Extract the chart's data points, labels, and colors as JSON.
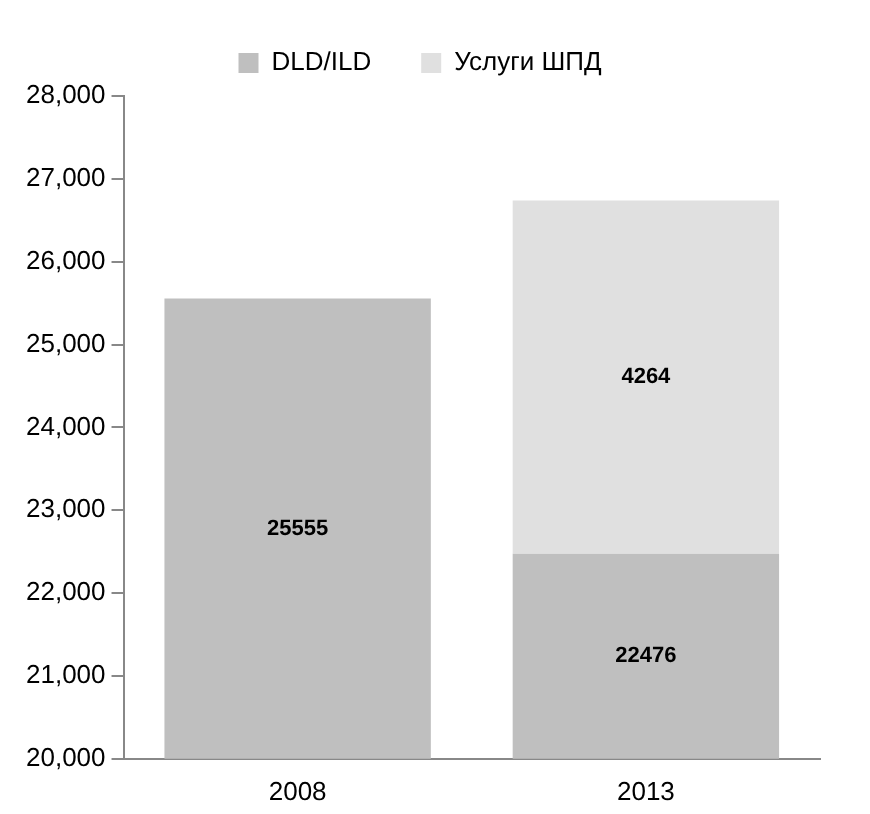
{
  "chart_data": {
    "type": "bar",
    "categories": [
      "2008",
      "2013"
    ],
    "stacked": true,
    "series": [
      {
        "name": "DLD/ILD",
        "color": "#bfbfbf",
        "values": [
          25555,
          22476
        ]
      },
      {
        "name": "Услуги ШПД",
        "color": "#e0e0e0",
        "values": [
          null,
          4264
        ],
        "base": [
          null,
          22476
        ]
      }
    ],
    "ylim": [
      20000,
      28000
    ],
    "yticks": [
      {
        "value": 20000,
        "label": "20,000"
      },
      {
        "value": 21000,
        "label": "21,000"
      },
      {
        "value": 22000,
        "label": "22,000"
      },
      {
        "value": 23000,
        "label": "23,000"
      },
      {
        "value": 24000,
        "label": "24,000"
      },
      {
        "value": 25000,
        "label": "25,000"
      },
      {
        "value": 26000,
        "label": "26,000"
      },
      {
        "value": 27000,
        "label": "27,000"
      },
      {
        "value": 28000,
        "label": "28,000"
      }
    ],
    "data_labels": true,
    "grid": false,
    "legend": "top"
  }
}
